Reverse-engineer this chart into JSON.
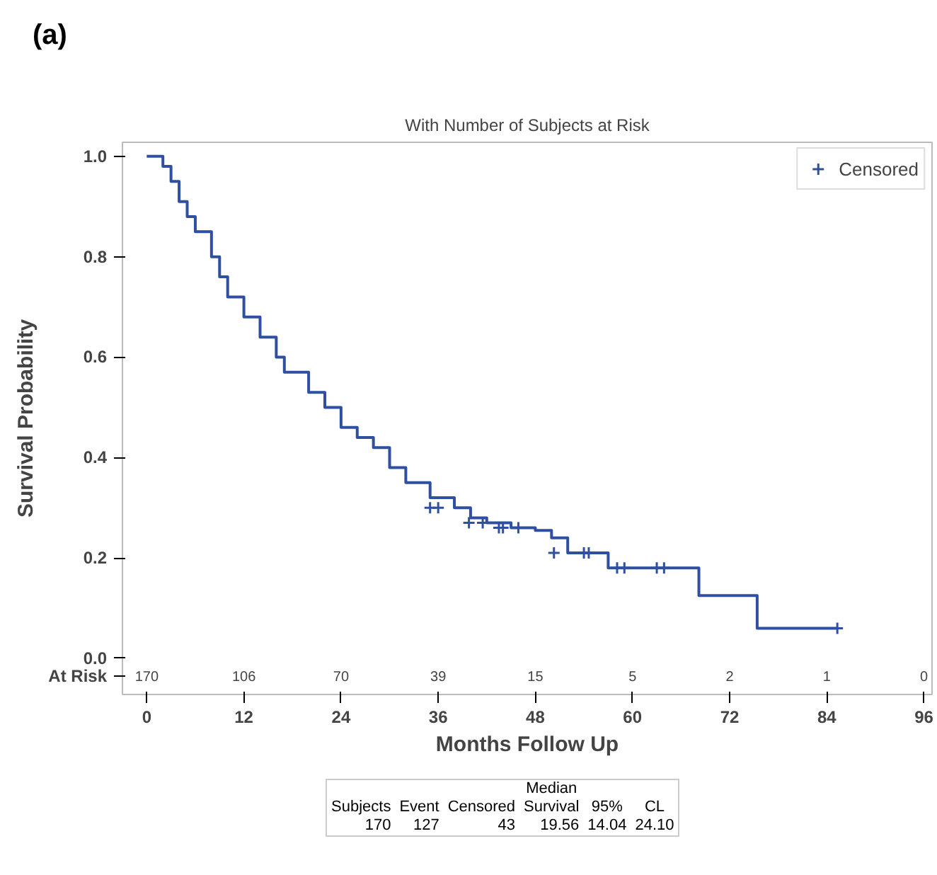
{
  "chart_data": {
    "type": "step",
    "title": "With Number of Subjects at Risk",
    "xlabel": "Months Follow Up",
    "ylabel": "Survival Probability",
    "xlim": [
      -3,
      97
    ],
    "ylim": [
      -0.072,
      1.028
    ],
    "xticks": [
      0,
      12,
      24,
      36,
      48,
      60,
      72,
      84,
      96
    ],
    "yticks": [
      {
        "value": 0,
        "label": "0.0"
      },
      {
        "value": 0.2,
        "label": "0.2"
      },
      {
        "value": 0.4,
        "label": "0.4"
      },
      {
        "value": 0.6,
        "label": "0.6"
      },
      {
        "value": 0.8,
        "label": "0.8"
      },
      {
        "value": 1,
        "label": "1.0"
      }
    ],
    "grid": false,
    "legend": "top right",
    "series": [
      {
        "color": "#2f4fa0",
        "x": [
          0,
          2,
          3,
          4,
          5,
          6,
          8,
          9,
          10,
          12,
          14,
          16,
          17,
          20,
          22,
          24,
          26,
          28,
          30,
          32,
          35,
          38,
          40,
          42,
          45,
          48,
          50,
          52,
          57,
          68.2,
          75.4,
          85.3
        ],
        "values": [
          1.0,
          0.98,
          0.95,
          0.91,
          0.88,
          0.85,
          0.8,
          0.76,
          0.72,
          0.68,
          0.64,
          0.6,
          0.57,
          0.53,
          0.5,
          0.46,
          0.44,
          0.42,
          0.38,
          0.35,
          0.32,
          0.3,
          0.28,
          0.27,
          0.26,
          0.255,
          0.24,
          0.21,
          0.18,
          0.125,
          0.06,
          0.06
        ]
      },
      {
        "type": "scatter",
        "name": "Censored",
        "color": "#2f4fa0",
        "marker": "cross",
        "x": [
          35,
          36,
          39.8,
          41.5,
          43.5,
          44,
          45.9,
          50.3,
          54,
          54.6,
          58.1,
          59,
          63,
          63.9,
          85.3
        ],
        "values": [
          0.3,
          0.3,
          0.27,
          0.27,
          0.26,
          0.26,
          0.26,
          0.21,
          0.21,
          0.21,
          0.18,
          0.18,
          0.18,
          0.18,
          0.06
        ]
      }
    ],
    "annotations": [
      "(a)",
      "At Risk",
      "170",
      "106",
      "70",
      "39",
      "15",
      "5",
      "2",
      "1",
      "0",
      "Subjects",
      "Event",
      "Censored",
      "Median Survival",
      "95%",
      "CL",
      "170",
      "127",
      "43",
      "19.56",
      "14.04",
      "24.10"
    ]
  }
}
